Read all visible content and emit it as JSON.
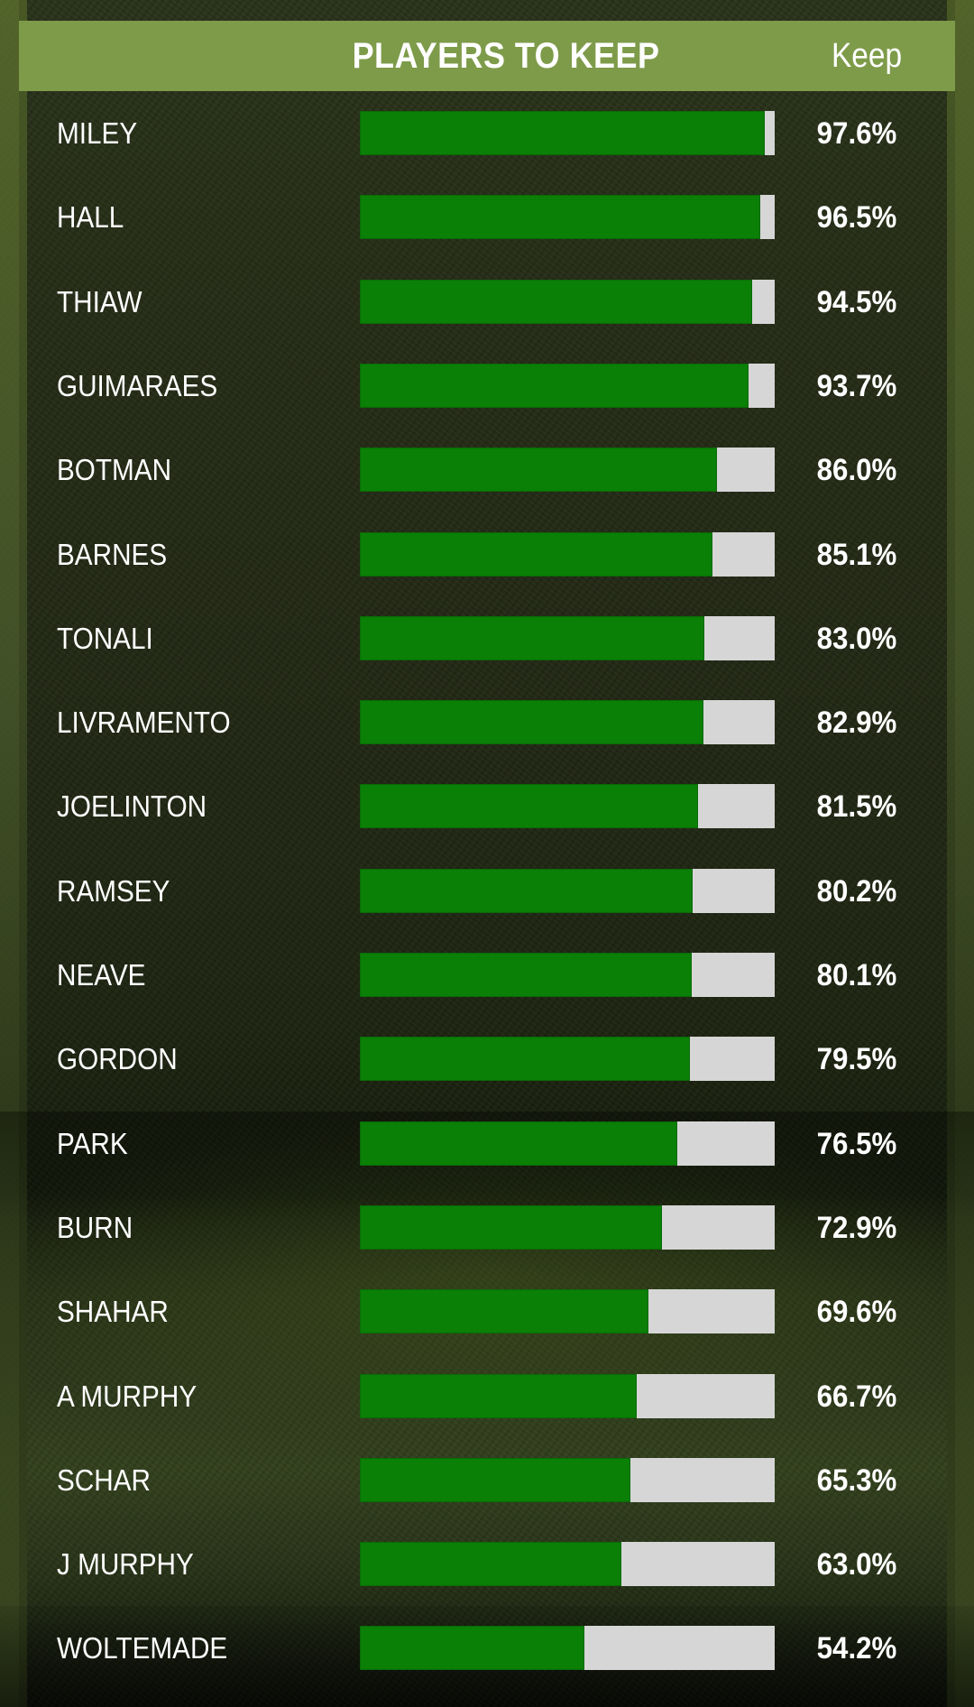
{
  "header": {
    "title": "PLAYERS TO KEEP",
    "column_label": "Keep"
  },
  "colors": {
    "header_bg": "#7e9b4a",
    "bar_fill": "#0a8006",
    "bar_track": "#d6d6d6",
    "text": "#ffffff"
  },
  "chart_data": {
    "type": "bar",
    "orientation": "horizontal",
    "title": "PLAYERS TO KEEP",
    "value_label": "Keep",
    "xlim": [
      0,
      100
    ],
    "categories": [
      "MILEY",
      "HALL",
      "THIAW",
      "GUIMARAES",
      "BOTMAN",
      "BARNES",
      "TONALI",
      "LIVRAMENTO",
      "JOELINTON",
      "RAMSEY",
      "NEAVE",
      "GORDON",
      "PARK",
      "BURN",
      "SHAHAR",
      "A MURPHY",
      "SCHAR",
      "J MURPHY",
      "WOLTEMADE"
    ],
    "values": [
      97.6,
      96.5,
      94.5,
      93.7,
      86.0,
      85.1,
      83.0,
      82.9,
      81.5,
      80.2,
      80.1,
      79.5,
      76.5,
      72.9,
      69.6,
      66.7,
      65.3,
      63.0,
      54.2
    ],
    "value_labels": [
      "97.6%",
      "96.5%",
      "94.5%",
      "93.7%",
      "86.0%",
      "85.1%",
      "83.0%",
      "82.9%",
      "81.5%",
      "80.2%",
      "80.1%",
      "79.5%",
      "76.5%",
      "72.9%",
      "69.6%",
      "66.7%",
      "65.3%",
      "63.0%",
      "54.2%"
    ]
  }
}
